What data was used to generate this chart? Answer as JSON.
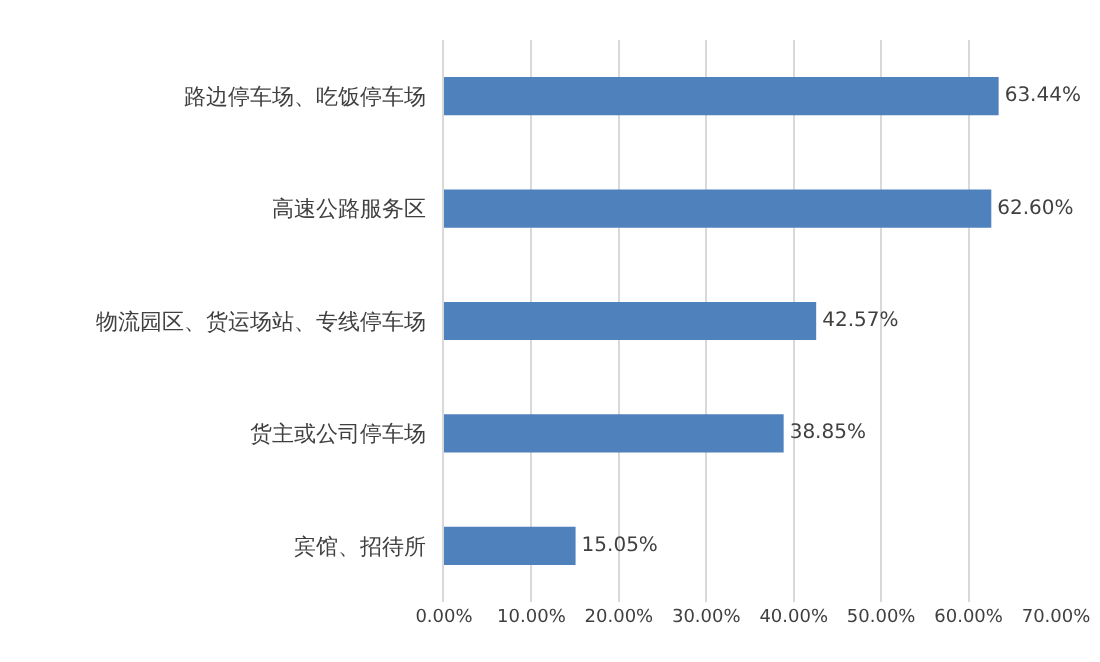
{
  "chart_data": {
    "type": "bar",
    "orientation": "horizontal",
    "categories": [
      "路边停车场、吃饭停车场",
      "高速公路服务区",
      "物流园区、货运场站、专线停车场",
      "货主或公司停车场",
      "宾馆、招待所"
    ],
    "values": [
      63.44,
      62.6,
      42.57,
      38.85,
      15.05
    ],
    "value_labels": [
      "63.44%",
      "62.60%",
      "42.57%",
      "38.85%",
      "15.05%"
    ],
    "color": "#4f81bd",
    "xlim": [
      0,
      70
    ],
    "xticks": [
      {
        "value": 0,
        "label": "0.00%"
      },
      {
        "value": 10,
        "label": "10.00%"
      },
      {
        "value": 20,
        "label": "20.00%"
      },
      {
        "value": 30,
        "label": "30.00%"
      },
      {
        "value": 40,
        "label": "40.00%"
      },
      {
        "value": 50,
        "label": "50.00%"
      },
      {
        "value": 60,
        "label": "60.00%"
      },
      {
        "value": 70,
        "label": "70.00%"
      }
    ],
    "grid": "x",
    "legend": false
  }
}
